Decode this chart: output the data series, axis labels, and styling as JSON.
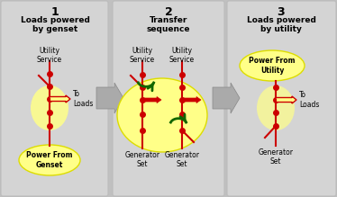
{
  "bg_color": "#c0c0c0",
  "panel_color": "#d4d4d4",
  "yellow": "#ffff88",
  "yellow_edge": "#dddd00",
  "red": "#cc0000",
  "green": "#116600",
  "arrow_gray": "#999999",
  "white": "#ffffff",
  "title1_num": "1",
  "title1_text": "Loads powered\nby genset",
  "title2_num": "2",
  "title2_text": "Transfer\nsequence",
  "title3_num": "3",
  "title3_text": "Loads powered\nby utility",
  "label_utility": "Utility\nService",
  "label_generator": "Generator\nSet",
  "label_to_loads": "To\nLoads",
  "label_power_genset": "Power From\nGenset",
  "label_power_utility": "Power From\nUtility"
}
